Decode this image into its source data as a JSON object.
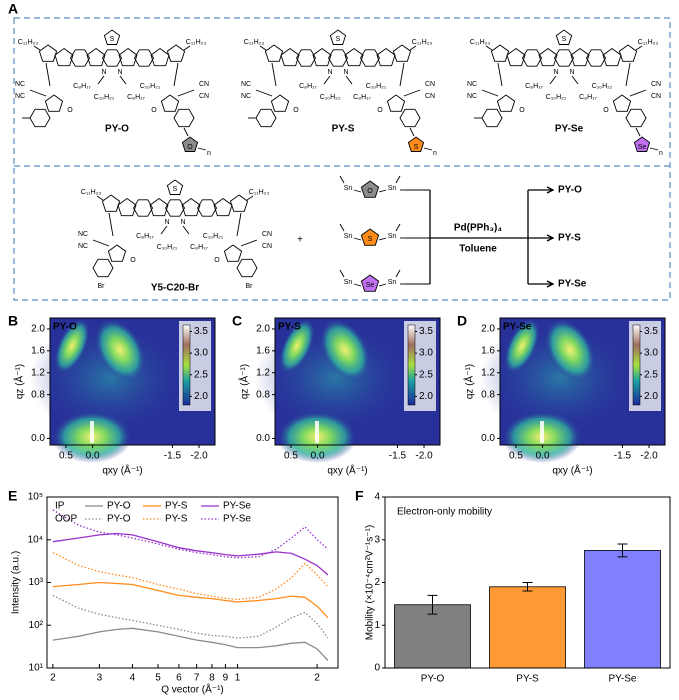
{
  "panel_labels": [
    "A",
    "B",
    "C",
    "D",
    "E",
    "F"
  ],
  "scheme": {
    "molecules": [
      {
        "name": "PY-O",
        "ring_atom": "O",
        "color": "#8c8c8c"
      },
      {
        "name": "PY-S",
        "ring_atom": "S",
        "color": "#ff8c1a"
      },
      {
        "name": "PY-Se",
        "ring_atom": "Se",
        "color": "#c070f0"
      }
    ],
    "chain_labels": [
      "C₁₁H₂₃",
      "C₈H₁₇",
      "C₁₀H₂₁"
    ],
    "atom_labels": {
      "cyano_left": "NC",
      "cyano_right": "CN",
      "oxygen": "O",
      "nitrogen": "N",
      "sulfur": "S",
      "tin": "Sn",
      "bromine": "Br",
      "repeat": "n"
    },
    "precursor": "Y5-C20-Br",
    "plus": "+",
    "catalyst": "Pd(PPh₃)₄",
    "solvent": "Toluene"
  },
  "giwaxs": {
    "panels": [
      "PY-O",
      "PY-S",
      "PY-Se"
    ],
    "xlabel": "qxy (Å⁻¹)",
    "ylabel": "qz (Å⁻¹)",
    "xlim": [
      0.8,
      -2.3
    ],
    "ylim": [
      -0.12,
      2.2
    ],
    "xticks": [
      {
        "value": 0.5,
        "label": "0.5"
      },
      {
        "value": 0,
        "label": "0.0"
      },
      {
        "value": -1.5,
        "label": "-1.5"
      },
      {
        "value": -2,
        "label": "-2.0"
      }
    ],
    "yticks": [
      {
        "value": 0,
        "label": "0.0"
      },
      {
        "value": 0.8,
        "label": "0.8"
      },
      {
        "value": 1.2,
        "label": "1.2"
      },
      {
        "value": 1.6,
        "label": "1.6"
      },
      {
        "value": 2,
        "label": "2.0"
      }
    ],
    "clim": [
      1.8,
      3.65
    ],
    "cticks": [
      {
        "value": 2,
        "label": "2.0"
      },
      {
        "value": 2.5,
        "label": "2.5"
      },
      {
        "value": 3,
        "label": "3.0"
      },
      {
        "value": 3.5,
        "label": "3.5"
      }
    ]
  },
  "chart_data": [
    {
      "type": "line",
      "xlabel": "Q vector (Å⁻¹)",
      "ylabel": "Intensity (a.u.)",
      "log_x": true,
      "log_y": true,
      "x": [
        0.2,
        0.25,
        0.3,
        0.35,
        0.4,
        0.5,
        0.6,
        0.7,
        0.8,
        0.9,
        1.0,
        1.2,
        1.4,
        1.6,
        1.8,
        2.0,
        2.2
      ],
      "xlim": [
        0.19,
        2.4
      ],
      "xticks": [
        {
          "value": 0.2,
          "label": "2"
        },
        {
          "value": 0.3,
          "label": "3"
        },
        {
          "value": 0.4,
          "label": "4"
        },
        {
          "value": 0.5,
          "label": "5"
        },
        {
          "value": 0.6,
          "label": "6"
        },
        {
          "value": 0.7,
          "label": "7"
        },
        {
          "value": 0.8,
          "label": "8"
        },
        {
          "value": 0.9,
          "label": "9"
        },
        1,
        2
      ],
      "ylim": [
        10,
        100000
      ],
      "yticks": [
        {
          "value": 10,
          "label": "10¹"
        },
        {
          "value": 100,
          "label": "10²"
        },
        {
          "value": 1000,
          "label": "10³"
        },
        {
          "value": 10000,
          "label": "10⁴"
        },
        {
          "value": 100000,
          "label": "10⁵"
        }
      ],
      "series": [
        {
          "name": "PY-O",
          "group": "IP",
          "color": "#8c8c8c",
          "style": "solid",
          "values": [
            45,
            55,
            70,
            80,
            85,
            70,
            55,
            45,
            40,
            35,
            30,
            30,
            33,
            38,
            40,
            28,
            15
          ]
        },
        {
          "name": "PY-S",
          "group": "IP",
          "color": "#ff8c1a",
          "style": "solid",
          "values": [
            800,
            900,
            1000,
            950,
            900,
            650,
            500,
            450,
            420,
            380,
            350,
            380,
            420,
            480,
            450,
            280,
            150
          ]
        },
        {
          "name": "PY-Se",
          "group": "IP",
          "color": "#9932cc",
          "style": "solid",
          "values": [
            9000,
            11000,
            13000,
            14000,
            13000,
            9000,
            6500,
            5500,
            5000,
            4500,
            4200,
            4600,
            5200,
            4800,
            3500,
            2500,
            1500
          ]
        },
        {
          "name": "PY-O",
          "group": "OOP",
          "color": "#8c8c8c",
          "style": "dotted",
          "values": [
            500,
            250,
            180,
            150,
            130,
            100,
            80,
            65,
            58,
            55,
            50,
            55,
            90,
            150,
            200,
            110,
            50
          ]
        },
        {
          "name": "PY-S",
          "group": "OOP",
          "color": "#ff8c1a",
          "style": "dotted",
          "values": [
            5000,
            2500,
            1800,
            1500,
            1300,
            900,
            700,
            550,
            480,
            430,
            400,
            450,
            700,
            1300,
            2800,
            1500,
            800
          ]
        },
        {
          "name": "PY-Se",
          "group": "OOP",
          "color": "#9932cc",
          "style": "dotted",
          "values": [
            50000,
            22000,
            15000,
            13000,
            11000,
            8000,
            6000,
            5000,
            4500,
            4000,
            3800,
            4000,
            6000,
            11000,
            20000,
            10000,
            6000
          ]
        }
      ]
    },
    {
      "type": "bar",
      "annotation": "Electron-only mobility",
      "ylabel": "Mobility (×10⁻⁴cm²V⁻¹s⁻¹)",
      "categories": [
        "PY-O",
        "PY-S",
        "PY-Se"
      ],
      "values": [
        1.48,
        1.9,
        2.75
      ],
      "errors": [
        0.22,
        0.1,
        0.15
      ],
      "colors": [
        "#808080",
        "#ff9933",
        "#8080ff"
      ],
      "ylim": [
        0,
        4
      ],
      "yticks": [
        0,
        1,
        2,
        3,
        4
      ]
    }
  ]
}
